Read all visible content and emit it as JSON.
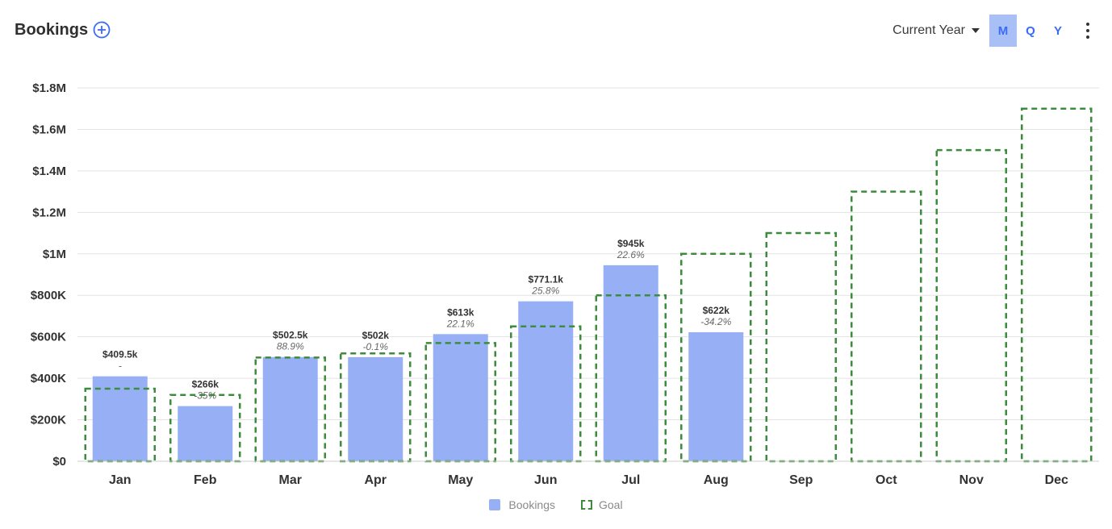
{
  "header": {
    "title": "Bookings",
    "add_icon": "plus-circle-icon"
  },
  "controls": {
    "period": "Current Year",
    "segments": [
      "M",
      "Q",
      "Y"
    ],
    "active_segment": "M",
    "menu_icon": "kebab-menu-icon"
  },
  "colors": {
    "bookings": "#97b0f5",
    "goal": "#3d8b3d",
    "accent": "#3b6cf6"
  },
  "chart_data": {
    "type": "bar",
    "categories": [
      "Jan",
      "Feb",
      "Mar",
      "Apr",
      "May",
      "Jun",
      "Jul",
      "Aug",
      "Sep",
      "Oct",
      "Nov",
      "Dec"
    ],
    "y_ticks": [
      "$0",
      "$200K",
      "$400K",
      "$600K",
      "$800K",
      "$1M",
      "$1.2M",
      "$1.4M",
      "$1.6M",
      "$1.8M"
    ],
    "ylim": [
      0,
      1800000
    ],
    "grid": true,
    "legend_placement": "bottom-center",
    "series": [
      {
        "name": "Bookings",
        "values": [
          409500,
          266000,
          502500,
          502000,
          613000,
          771100,
          945000,
          622000,
          null,
          null,
          null,
          null
        ],
        "labels": [
          "$409.5k",
          "$266k",
          "$502.5k",
          "$502k",
          "$613k",
          "$771.1k",
          "$945k",
          "$622k",
          "",
          "",
          "",
          ""
        ],
        "changes": [
          "-",
          "-35%",
          "88.9%",
          "-0.1%",
          "22.1%",
          "25.8%",
          "22.6%",
          "-34.2%",
          "",
          "",
          "",
          ""
        ]
      },
      {
        "name": "Goal",
        "values": [
          350000,
          320000,
          500000,
          520000,
          570000,
          650000,
          800000,
          1000000,
          1100000,
          1300000,
          1500000,
          1700000
        ]
      }
    ]
  }
}
